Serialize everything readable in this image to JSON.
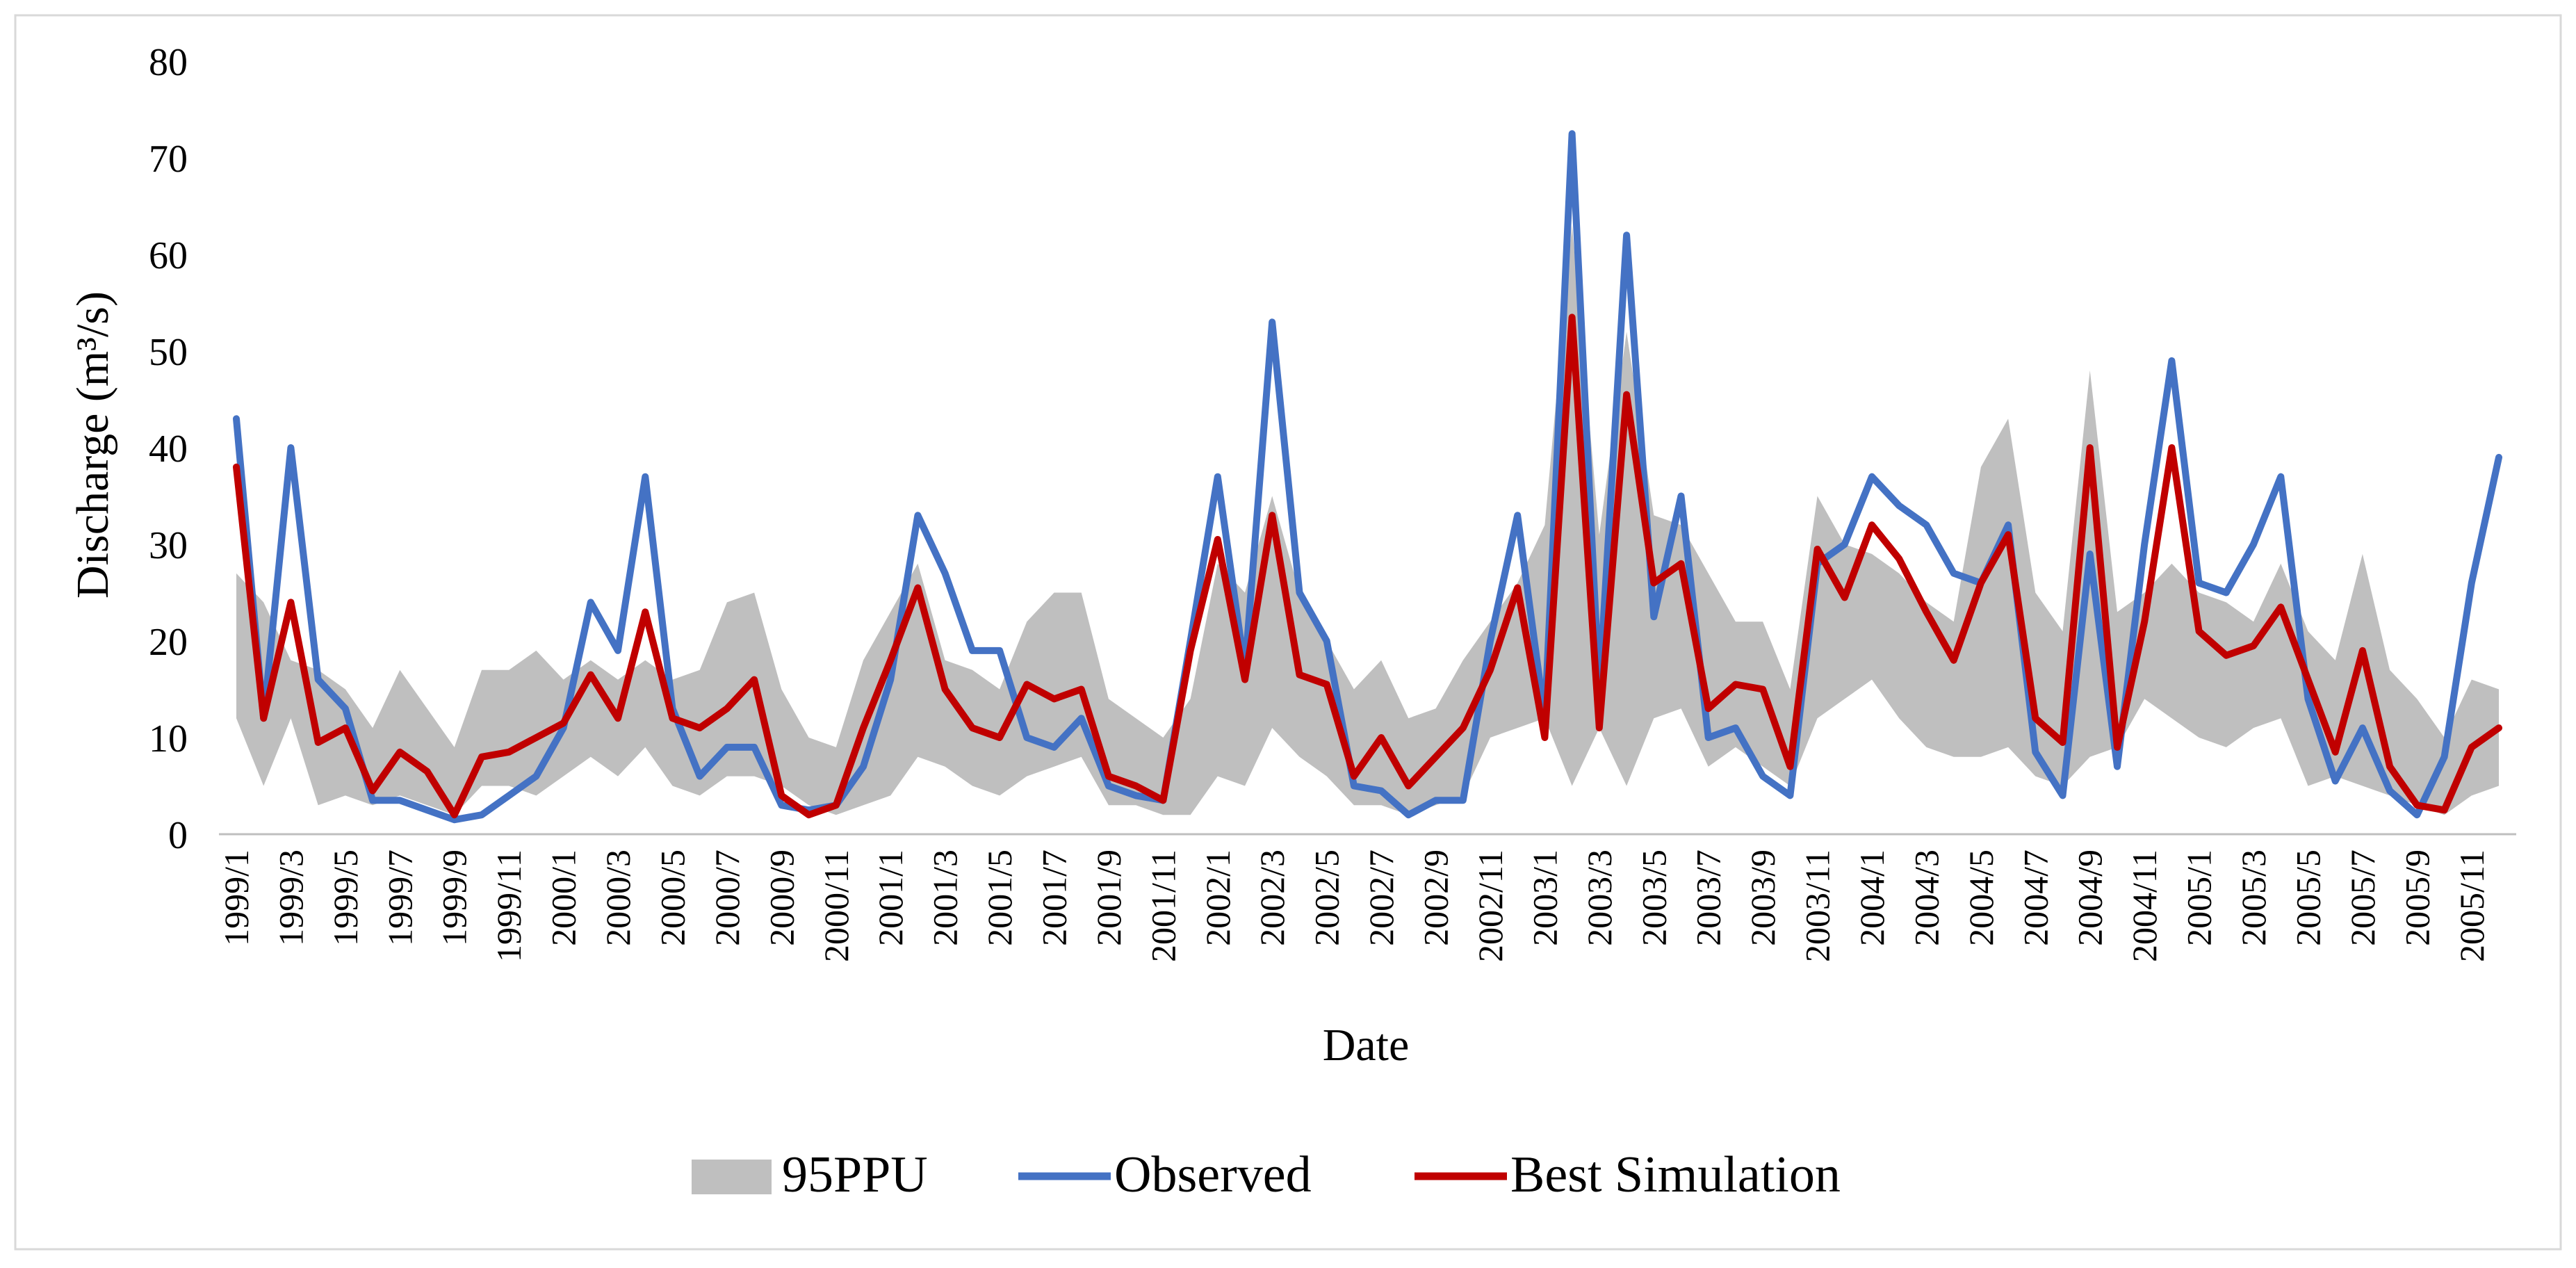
{
  "chart_data": {
    "type": "line",
    "title": "",
    "xlabel": "Date",
    "ylabel": "Discharge (m³/s)",
    "ylim": [
      0,
      80
    ],
    "yticks": [
      "0",
      "10",
      "20",
      "30",
      "40",
      "50",
      "60",
      "70",
      "80"
    ],
    "legend_position": "bottom",
    "x": [
      "1999/1",
      "1999/2",
      "1999/3",
      "1999/4",
      "1999/5",
      "1999/6",
      "1999/7",
      "1999/8",
      "1999/9",
      "1999/10",
      "1999/11",
      "1999/12",
      "2000/1",
      "2000/2",
      "2000/3",
      "2000/4",
      "2000/5",
      "2000/6",
      "2000/7",
      "2000/8",
      "2000/9",
      "2000/10",
      "2000/11",
      "2000/12",
      "2001/1",
      "2001/2",
      "2001/3",
      "2001/4",
      "2001/5",
      "2001/6",
      "2001/7",
      "2001/8",
      "2001/9",
      "2001/10",
      "2001/11",
      "2001/12",
      "2002/1",
      "2002/2",
      "2002/3",
      "2002/4",
      "2002/5",
      "2002/6",
      "2002/7",
      "2002/8",
      "2002/9",
      "2002/10",
      "2002/11",
      "2002/12",
      "2003/1",
      "2003/2",
      "2003/3",
      "2003/4",
      "2003/5",
      "2003/6",
      "2003/7",
      "2003/8",
      "2003/9",
      "2003/10",
      "2003/11",
      "2003/12",
      "2004/1",
      "2004/2",
      "2004/3",
      "2004/4",
      "2004/5",
      "2004/6",
      "2004/7",
      "2004/8",
      "2004/9",
      "2004/10",
      "2004/11",
      "2004/12",
      "2005/1",
      "2005/2",
      "2005/3",
      "2005/4",
      "2005/5",
      "2005/6",
      "2005/7",
      "2005/8",
      "2005/9",
      "2005/10",
      "2005/11",
      "2005/12"
    ],
    "x_tick_labels": [
      "1999/1",
      "1999/3",
      "1999/5",
      "1999/7",
      "1999/9",
      "1999/11",
      "2000/1",
      "2000/3",
      "2000/5",
      "2000/7",
      "2000/9",
      "2000/11",
      "2001/1",
      "2001/3",
      "2001/5",
      "2001/7",
      "2001/9",
      "2001/11",
      "2002/1",
      "2002/3",
      "2002/5",
      "2002/7",
      "2002/9",
      "2002/11",
      "2003/1",
      "2003/3",
      "2003/5",
      "2003/7",
      "2003/9",
      "2003/11",
      "2004/1",
      "2004/3",
      "2004/5",
      "2004/7",
      "2004/9",
      "2004/11",
      "2005/1",
      "2005/3",
      "2005/5",
      "2005/7",
      "2005/9",
      "2005/11"
    ],
    "series": [
      {
        "name": "95PPU",
        "kind": "band",
        "color": "#bfbfbf",
        "lower": [
          12,
          5,
          12,
          3,
          4,
          3,
          4,
          3,
          2,
          5,
          5,
          4,
          6,
          8,
          6,
          9,
          5,
          4,
          6,
          6,
          5,
          3,
          2,
          3,
          4,
          8,
          7,
          5,
          4,
          6,
          7,
          8,
          3,
          3,
          2,
          2,
          6,
          5,
          11,
          8,
          6,
          3,
          3,
          2,
          3,
          4,
          10,
          11,
          12,
          5,
          11,
          5,
          12,
          13,
          7,
          9,
          7,
          5,
          12,
          14,
          16,
          12,
          9,
          8,
          8,
          9,
          6,
          5,
          8,
          9,
          14,
          12,
          10,
          9,
          11,
          12,
          5,
          6,
          5,
          4,
          3,
          2,
          4,
          5
        ],
        "upper": [
          27,
          24,
          18,
          17,
          15,
          11,
          17,
          13,
          9,
          17,
          17,
          19,
          16,
          18,
          16,
          18,
          16,
          17,
          24,
          25,
          15,
          10,
          9,
          18,
          23,
          28,
          18,
          17,
          15,
          22,
          25,
          25,
          14,
          12,
          10,
          14,
          28,
          25,
          35,
          25,
          20,
          15,
          18,
          12,
          13,
          18,
          22,
          26,
          32,
          63,
          31,
          52,
          33,
          32,
          27,
          22,
          22,
          15,
          35,
          30,
          29,
          27,
          24,
          22,
          38,
          43,
          25,
          21,
          48,
          23,
          25,
          28,
          25,
          24,
          22,
          28,
          21,
          18,
          29,
          17,
          14,
          10,
          16,
          15
        ]
      },
      {
        "name": "Observed",
        "kind": "line",
        "color": "#4472c4",
        "values": [
          43,
          12,
          40,
          16,
          13,
          3.5,
          3.5,
          2.5,
          1.5,
          2,
          4,
          6,
          11,
          24,
          19,
          37,
          13,
          6,
          9,
          9,
          3,
          2.5,
          3,
          7,
          16,
          33,
          27,
          19,
          19,
          10,
          9,
          12,
          5,
          4,
          3.5,
          20,
          37,
          17,
          53,
          25,
          20,
          5,
          4.5,
          2,
          3.5,
          3.5,
          20,
          33,
          12,
          72.5,
          15,
          62,
          22.5,
          35,
          10,
          11,
          6,
          4,
          28,
          30,
          37,
          34,
          32,
          27,
          26,
          32,
          8.5,
          4,
          29,
          7,
          30,
          49,
          26,
          25,
          30,
          37,
          14,
          5.5,
          11,
          4.5,
          2,
          8,
          26,
          39
        ]
      },
      {
        "name": "Best Simulation",
        "kind": "line",
        "color": "#c00000",
        "values": [
          38,
          12,
          24,
          9.5,
          11,
          4.5,
          8.5,
          6.5,
          2,
          8,
          8.5,
          10,
          11.5,
          16.5,
          12,
          23,
          12,
          11,
          13,
          16,
          4,
          2,
          3,
          11,
          18,
          25.5,
          15,
          11,
          10,
          15.5,
          14,
          15,
          6,
          5,
          3.5,
          19,
          30.5,
          16,
          33,
          16.5,
          15.5,
          6,
          10,
          5,
          8,
          11,
          17,
          25.5,
          10,
          53.5,
          11,
          45.5,
          26,
          28,
          13,
          15.5,
          15,
          7,
          29.5,
          24.5,
          32,
          28.5,
          23,
          18,
          26,
          31,
          12,
          9.5,
          40,
          9,
          22,
          40,
          21,
          18.5,
          19.5,
          23.5,
          16,
          8.5,
          19,
          7,
          3,
          2.5,
          9,
          11
        ]
      }
    ]
  }
}
